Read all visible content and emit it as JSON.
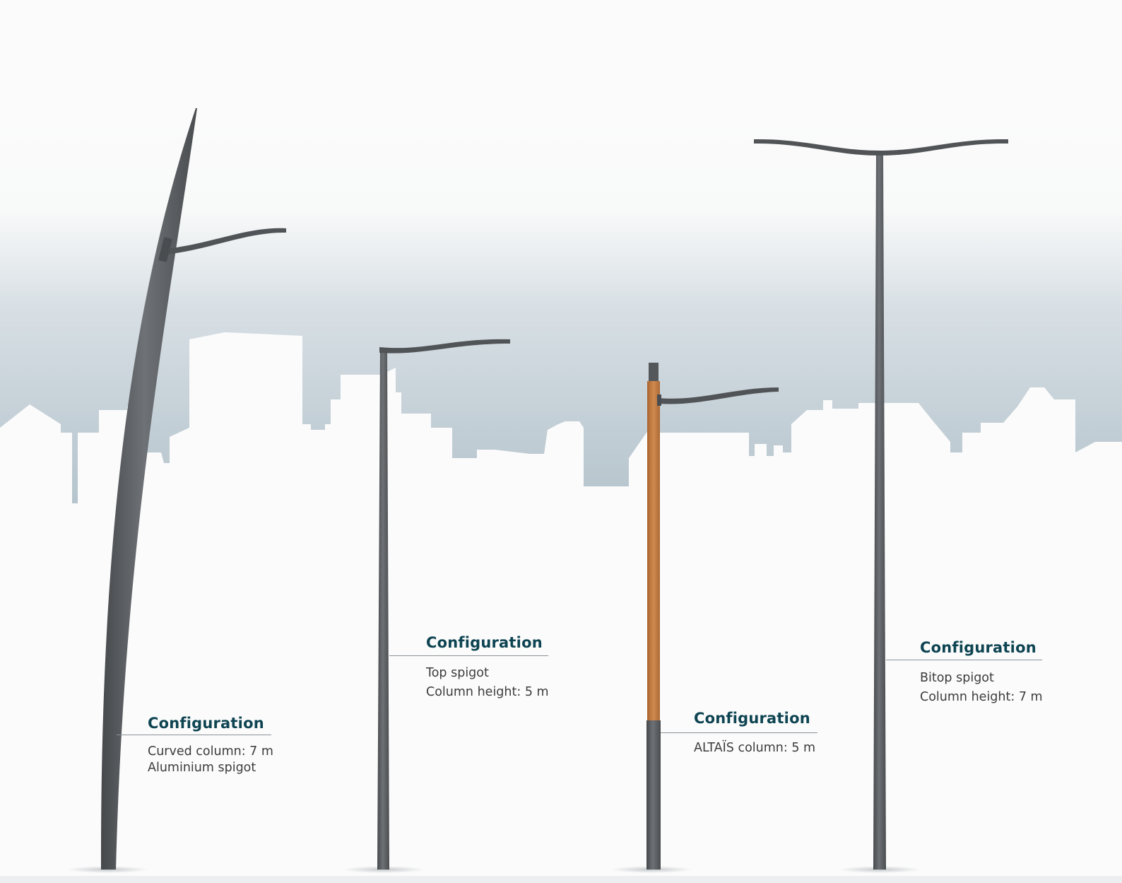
{
  "configurations": [
    {
      "id": "curved",
      "title": "Configuration",
      "lines": [
        "Curved column: 7 m",
        "Aluminium spigot"
      ]
    },
    {
      "id": "top",
      "title": "Configuration",
      "lines": [
        "Top spigot",
        "Column height: 5 m"
      ]
    },
    {
      "id": "altais",
      "title": "Configuration",
      "lines": [
        "ALTAÏS column: 5 m"
      ]
    },
    {
      "id": "bitop",
      "title": "Configuration",
      "lines": [
        "Bitop spigot",
        "Column height: 7 m"
      ]
    }
  ],
  "colors": {
    "title": "#0e4452",
    "text": "#3c3c3c",
    "sky_top": "#fbfbfb",
    "sky_bottom": "#b3c2cb",
    "pole": "#56595c",
    "wood": "#c27a42"
  }
}
